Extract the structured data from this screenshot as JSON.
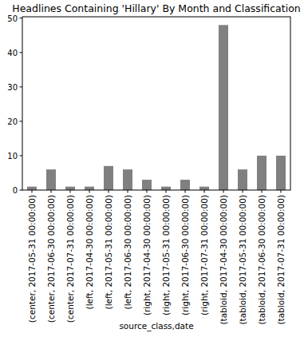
{
  "chart_data": {
    "type": "bar",
    "title": "Headlines Containing 'Hillary' By Month and Classification",
    "x_label": "source_class,date",
    "categories": [
      "(center, 2017-05-31 00:00:00)",
      "(center, 2017-06-30 00:00:00)",
      "(center, 2017-07-31 00:00:00)",
      "(left, 2017-04-30 00:00:00)",
      "(left, 2017-05-31 00:00:00)",
      "(left, 2017-06-30 00:00:00)",
      "(right, 2017-04-30 00:00:00)",
      "(right, 2017-05-31 00:00:00)",
      "(right, 2017-06-30 00:00:00)",
      "(right, 2017-07-31 00:00:00)",
      "(tabloid, 2017-04-30 00:00:00)",
      "(tabloid, 2017-05-31 00:00:00)",
      "(tabloid, 2017-06-30 00:00:00)",
      "(tabloid, 2017-07-31 00:00:00)"
    ],
    "values": [
      1,
      6,
      1,
      1,
      7,
      6,
      3,
      1,
      3,
      1,
      48,
      6,
      10,
      10
    ],
    "color": "#808080",
    "ylim": [
      0,
      50.4
    ],
    "yticks": [
      0,
      10,
      20,
      30,
      40,
      50
    ],
    "grid": false
  }
}
